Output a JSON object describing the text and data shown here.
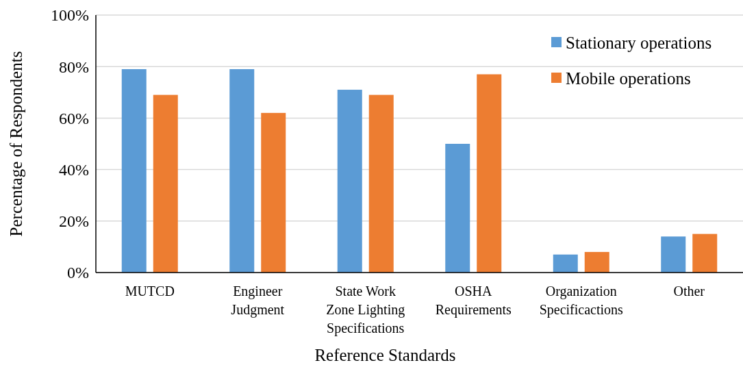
{
  "chart_data": {
    "type": "bar",
    "xlabel": "Reference Standards",
    "ylabel": "Percentage of Respondents",
    "categories": [
      "MUTCD",
      "Engineer\nJudgment",
      "State Work\nZone Lighting\nSpecifications",
      "OSHA\nRequirements",
      "Organization\nSpecificactions",
      "Other"
    ],
    "series": [
      {
        "name": "Stationary operations",
        "color": "#5b9bd5",
        "values": [
          79,
          79,
          71,
          50,
          7,
          14
        ]
      },
      {
        "name": "Mobile operations",
        "color": "#ed7d31",
        "values": [
          69,
          62,
          69,
          77,
          8,
          15
        ]
      }
    ],
    "ylim": [
      0,
      100
    ],
    "yticks": [
      {
        "value": 0,
        "label": "0%"
      },
      {
        "value": 20,
        "label": "20%"
      },
      {
        "value": 40,
        "label": "40%"
      },
      {
        "value": 60,
        "label": "60%"
      },
      {
        "value": 80,
        "label": "80%"
      },
      {
        "value": 100,
        "label": "100%"
      }
    ],
    "grid": "y",
    "legend": "top right"
  }
}
